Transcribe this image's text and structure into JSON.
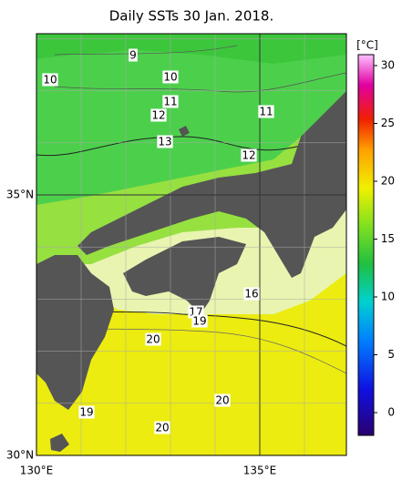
{
  "title": "Daily SSTs 30 Jan. 2018.",
  "axes": {
    "lat_labels": [
      "35°N",
      "30°N"
    ],
    "lon_labels": [
      "130°E",
      "135°E"
    ]
  },
  "contour_labels": [
    9,
    10,
    10,
    11,
    12,
    11,
    13,
    12,
    16,
    17,
    19,
    20,
    20,
    19,
    20
  ],
  "colorbar": {
    "unit": "[°C]",
    "ticks": [
      30,
      25,
      20,
      15,
      10,
      5,
      0
    ]
  }
}
